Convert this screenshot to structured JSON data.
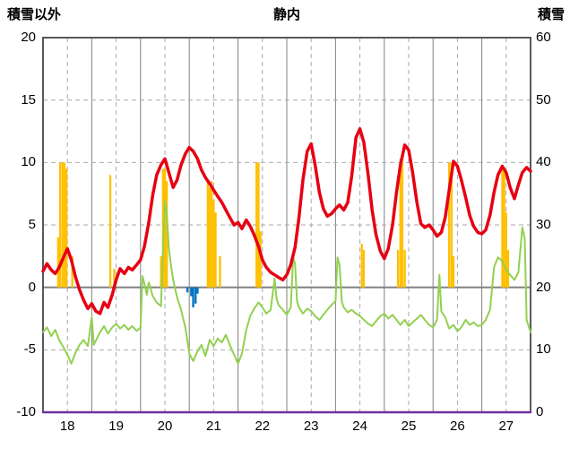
{
  "title": "静内",
  "left_axis": {
    "label": "積雪以外",
    "ticks": [
      20,
      15,
      10,
      5,
      0,
      -5,
      -10
    ]
  },
  "right_axis": {
    "label": "積雪",
    "ticks": [
      60,
      50,
      40,
      30,
      20,
      10,
      0
    ]
  },
  "x_axis": {
    "labels": [
      "18",
      "19",
      "20",
      "21",
      "22",
      "23",
      "24",
      "25",
      "26",
      "27"
    ]
  },
  "colors": {
    "red": "#e60012",
    "green": "#92d050",
    "orange": "#ffc000",
    "blue": "#0070c0",
    "purple": "#7030a0",
    "grid_solid": "#808080",
    "grid_dashed": "#a9a9a9",
    "zero_line": "#808080",
    "border": "#595959",
    "text": "#000000",
    "background": "#ffffff"
  },
  "chart_data": {
    "type": "line",
    "title": "静内",
    "xlabel": "",
    "ylabel_left": "積雪以外",
    "ylabel_right": "積雪",
    "xlim": [
      18,
      28
    ],
    "ylim_left": [
      -10,
      20
    ],
    "ylim_right": [
      0,
      60
    ],
    "grid": "on",
    "legend": "none",
    "x_tick_labels": [
      "18",
      "19",
      "20",
      "21",
      "22",
      "23",
      "24",
      "25",
      "26",
      "27"
    ],
    "series": [
      {
        "id": "orange-bars",
        "name": "orange-bars",
        "type": "bar",
        "axis": "left",
        "color_key": "orange",
        "bar_width_days": 0.042,
        "points": [
          [
            18.31,
            4
          ],
          [
            18.35,
            10
          ],
          [
            18.4,
            10
          ],
          [
            18.44,
            10
          ],
          [
            18.48,
            9.5
          ],
          [
            18.6,
            2.5
          ],
          [
            19.38,
            9
          ],
          [
            19.46,
            1.5
          ],
          [
            20.42,
            2.5
          ],
          [
            20.46,
            9.5
          ],
          [
            20.5,
            9.5
          ],
          [
            20.54,
            8.5
          ],
          [
            21.38,
            8.5
          ],
          [
            21.42,
            8
          ],
          [
            21.46,
            8.5
          ],
          [
            21.5,
            7
          ],
          [
            21.54,
            6
          ],
          [
            21.63,
            2.5
          ],
          [
            22.38,
            10
          ],
          [
            22.42,
            10
          ],
          [
            22.46,
            4.5
          ],
          [
            24.54,
            3.5
          ],
          [
            24.58,
            3
          ],
          [
            25.28,
            3
          ],
          [
            25.33,
            10.3
          ],
          [
            25.37,
            10
          ],
          [
            25.42,
            3
          ],
          [
            26.33,
            10
          ],
          [
            26.38,
            10
          ],
          [
            26.42,
            2.5
          ],
          [
            27.42,
            9.5
          ],
          [
            27.46,
            9.5
          ],
          [
            27.5,
            6
          ],
          [
            27.54,
            3
          ]
        ]
      },
      {
        "id": "blue-bars",
        "name": "blue-bars",
        "type": "bar",
        "axis": "left",
        "color_key": "blue",
        "bar_width_days": 0.042,
        "points": [
          [
            20.96,
            -0.4
          ],
          [
            21.04,
            -0.7
          ],
          [
            21.08,
            -1.6
          ],
          [
            21.13,
            -1.3
          ],
          [
            21.17,
            -0.5
          ]
        ]
      },
      {
        "id": "green-line",
        "name": "green-line",
        "type": "line",
        "axis": "left",
        "color_key": "green",
        "stroke_width": 2,
        "points": [
          [
            18.0,
            -3.6
          ],
          [
            18.08,
            -3.2
          ],
          [
            18.17,
            -3.9
          ],
          [
            18.25,
            -3.4
          ],
          [
            18.33,
            -4.2
          ],
          [
            18.42,
            -4.8
          ],
          [
            18.5,
            -5.4
          ],
          [
            18.58,
            -6.1
          ],
          [
            18.67,
            -5.2
          ],
          [
            18.75,
            -4.6
          ],
          [
            18.83,
            -4.2
          ],
          [
            18.92,
            -4.7
          ],
          [
            19.0,
            -2.4
          ],
          [
            19.04,
            -4.6
          ],
          [
            19.17,
            -3.6
          ],
          [
            19.25,
            -3.1
          ],
          [
            19.33,
            -3.7
          ],
          [
            19.42,
            -3.2
          ],
          [
            19.5,
            -2.9
          ],
          [
            19.58,
            -3.3
          ],
          [
            19.67,
            -3.0
          ],
          [
            19.75,
            -3.4
          ],
          [
            19.83,
            -3.1
          ],
          [
            19.92,
            -3.5
          ],
          [
            20.0,
            -3.2
          ],
          [
            20.04,
            0.9
          ],
          [
            20.08,
            0.3
          ],
          [
            20.13,
            -0.6
          ],
          [
            20.17,
            0.4
          ],
          [
            20.25,
            -0.7
          ],
          [
            20.33,
            -1.2
          ],
          [
            20.42,
            -1.5
          ],
          [
            20.5,
            6.9
          ],
          [
            20.54,
            5.8
          ],
          [
            20.58,
            3.1
          ],
          [
            20.63,
            1.6
          ],
          [
            20.67,
            0.6
          ],
          [
            20.75,
            -0.8
          ],
          [
            20.83,
            -1.8
          ],
          [
            20.92,
            -3.2
          ],
          [
            21.0,
            -5.3
          ],
          [
            21.08,
            -5.9
          ],
          [
            21.17,
            -5.1
          ],
          [
            21.25,
            -4.6
          ],
          [
            21.33,
            -5.5
          ],
          [
            21.42,
            -4.2
          ],
          [
            21.5,
            -4.7
          ],
          [
            21.58,
            -4.1
          ],
          [
            21.67,
            -4.4
          ],
          [
            21.75,
            -3.8
          ],
          [
            21.83,
            -4.6
          ],
          [
            21.92,
            -5.4
          ],
          [
            22.0,
            -6.1
          ],
          [
            22.08,
            -5.3
          ],
          [
            22.17,
            -3.4
          ],
          [
            22.25,
            -2.3
          ],
          [
            22.33,
            -1.7
          ],
          [
            22.42,
            -1.2
          ],
          [
            22.5,
            -1.6
          ],
          [
            22.58,
            -2.1
          ],
          [
            22.67,
            -1.8
          ],
          [
            22.75,
            0.7
          ],
          [
            22.79,
            -0.9
          ],
          [
            22.83,
            -1.4
          ],
          [
            22.92,
            -1.8
          ],
          [
            23.0,
            -2.2
          ],
          [
            23.08,
            -1.6
          ],
          [
            23.13,
            2.4
          ],
          [
            23.17,
            1.9
          ],
          [
            23.21,
            -1.1
          ],
          [
            23.25,
            -1.6
          ],
          [
            23.33,
            -2.1
          ],
          [
            23.42,
            -1.7
          ],
          [
            23.5,
            -1.9
          ],
          [
            23.58,
            -2.3
          ],
          [
            23.67,
            -2.6
          ],
          [
            23.75,
            -2.2
          ],
          [
            23.83,
            -1.8
          ],
          [
            23.92,
            -1.4
          ],
          [
            24.0,
            -1.1
          ],
          [
            24.04,
            2.4
          ],
          [
            24.08,
            1.8
          ],
          [
            24.13,
            -1.2
          ],
          [
            24.17,
            -1.6
          ],
          [
            24.25,
            -2.0
          ],
          [
            24.33,
            -1.8
          ],
          [
            24.42,
            -2.1
          ],
          [
            24.5,
            -2.3
          ],
          [
            24.58,
            -2.6
          ],
          [
            24.67,
            -2.9
          ],
          [
            24.75,
            -3.1
          ],
          [
            24.83,
            -2.7
          ],
          [
            24.92,
            -2.3
          ],
          [
            25.0,
            -2.1
          ],
          [
            25.08,
            -2.5
          ],
          [
            25.17,
            -2.2
          ],
          [
            25.25,
            -2.6
          ],
          [
            25.33,
            -3.0
          ],
          [
            25.42,
            -2.6
          ],
          [
            25.5,
            -3.1
          ],
          [
            25.58,
            -2.8
          ],
          [
            25.67,
            -2.5
          ],
          [
            25.75,
            -2.2
          ],
          [
            25.83,
            -2.6
          ],
          [
            25.92,
            -3.0
          ],
          [
            26.0,
            -3.2
          ],
          [
            26.08,
            -2.6
          ],
          [
            26.13,
            1.0
          ],
          [
            26.17,
            -1.9
          ],
          [
            26.25,
            -2.4
          ],
          [
            26.33,
            -3.3
          ],
          [
            26.42,
            -3.0
          ],
          [
            26.5,
            -3.5
          ],
          [
            26.58,
            -3.2
          ],
          [
            26.67,
            -2.6
          ],
          [
            26.75,
            -3.0
          ],
          [
            26.83,
            -2.8
          ],
          [
            26.92,
            -3.1
          ],
          [
            27.0,
            -3.0
          ],
          [
            27.08,
            -2.6
          ],
          [
            27.17,
            -1.8
          ],
          [
            27.25,
            1.6
          ],
          [
            27.33,
            2.4
          ],
          [
            27.42,
            2.1
          ],
          [
            27.5,
            1.4
          ],
          [
            27.58,
            1.0
          ],
          [
            27.67,
            0.6
          ],
          [
            27.75,
            1.2
          ],
          [
            27.83,
            4.8
          ],
          [
            27.88,
            3.9
          ],
          [
            27.92,
            -2.6
          ],
          [
            28.0,
            -3.6
          ]
        ]
      },
      {
        "id": "red-line",
        "name": "red-line",
        "type": "line",
        "axis": "left",
        "color_key": "red",
        "stroke_width": 3.5,
        "points": [
          [
            18.0,
            1.3
          ],
          [
            18.08,
            1.9
          ],
          [
            18.17,
            1.4
          ],
          [
            18.25,
            1.1
          ],
          [
            18.33,
            1.6
          ],
          [
            18.42,
            2.4
          ],
          [
            18.5,
            3.1
          ],
          [
            18.58,
            2.2
          ],
          [
            18.67,
            0.8
          ],
          [
            18.75,
            -0.2
          ],
          [
            18.83,
            -1.0
          ],
          [
            18.92,
            -1.7
          ],
          [
            19.0,
            -1.3
          ],
          [
            19.08,
            -1.9
          ],
          [
            19.17,
            -2.1
          ],
          [
            19.25,
            -1.2
          ],
          [
            19.33,
            -1.6
          ],
          [
            19.42,
            -0.6
          ],
          [
            19.5,
            0.6
          ],
          [
            19.58,
            1.5
          ],
          [
            19.67,
            1.1
          ],
          [
            19.75,
            1.6
          ],
          [
            19.83,
            1.4
          ],
          [
            19.92,
            1.8
          ],
          [
            20.0,
            2.2
          ],
          [
            20.08,
            3.3
          ],
          [
            20.17,
            5.2
          ],
          [
            20.25,
            7.4
          ],
          [
            20.33,
            9.0
          ],
          [
            20.42,
            9.8
          ],
          [
            20.5,
            10.3
          ],
          [
            20.58,
            9.2
          ],
          [
            20.67,
            8.0
          ],
          [
            20.75,
            8.6
          ],
          [
            20.83,
            9.8
          ],
          [
            20.92,
            10.7
          ],
          [
            21.0,
            11.2
          ],
          [
            21.08,
            10.9
          ],
          [
            21.17,
            10.3
          ],
          [
            21.25,
            9.4
          ],
          [
            21.33,
            8.8
          ],
          [
            21.42,
            8.3
          ],
          [
            21.5,
            7.8
          ],
          [
            21.58,
            7.3
          ],
          [
            21.67,
            6.8
          ],
          [
            21.75,
            6.2
          ],
          [
            21.83,
            5.6
          ],
          [
            21.92,
            5.0
          ],
          [
            22.0,
            5.2
          ],
          [
            22.08,
            4.7
          ],
          [
            22.17,
            5.4
          ],
          [
            22.25,
            4.9
          ],
          [
            22.33,
            4.2
          ],
          [
            22.42,
            3.3
          ],
          [
            22.5,
            2.2
          ],
          [
            22.58,
            1.6
          ],
          [
            22.67,
            1.2
          ],
          [
            22.75,
            1.0
          ],
          [
            22.83,
            0.8
          ],
          [
            22.92,
            0.6
          ],
          [
            23.0,
            1.0
          ],
          [
            23.08,
            1.8
          ],
          [
            23.17,
            3.2
          ],
          [
            23.25,
            5.6
          ],
          [
            23.33,
            8.6
          ],
          [
            23.42,
            10.9
          ],
          [
            23.5,
            11.5
          ],
          [
            23.58,
            9.8
          ],
          [
            23.67,
            7.6
          ],
          [
            23.75,
            6.3
          ],
          [
            23.83,
            5.7
          ],
          [
            23.92,
            5.9
          ],
          [
            24.0,
            6.3
          ],
          [
            24.08,
            6.6
          ],
          [
            24.17,
            6.2
          ],
          [
            24.25,
            6.8
          ],
          [
            24.33,
            8.9
          ],
          [
            24.42,
            12.0
          ],
          [
            24.5,
            12.7
          ],
          [
            24.58,
            11.6
          ],
          [
            24.67,
            9.0
          ],
          [
            24.75,
            6.2
          ],
          [
            24.83,
            4.2
          ],
          [
            24.92,
            2.9
          ],
          [
            25.0,
            2.3
          ],
          [
            25.08,
            3.1
          ],
          [
            25.17,
            5.0
          ],
          [
            25.25,
            7.6
          ],
          [
            25.33,
            9.8
          ],
          [
            25.42,
            11.4
          ],
          [
            25.5,
            11.0
          ],
          [
            25.58,
            9.2
          ],
          [
            25.67,
            6.8
          ],
          [
            25.75,
            5.1
          ],
          [
            25.83,
            4.8
          ],
          [
            25.92,
            5.0
          ],
          [
            26.0,
            4.6
          ],
          [
            26.08,
            4.1
          ],
          [
            26.17,
            4.4
          ],
          [
            26.25,
            5.6
          ],
          [
            26.33,
            7.8
          ],
          [
            26.42,
            10.1
          ],
          [
            26.5,
            9.7
          ],
          [
            26.58,
            8.6
          ],
          [
            26.67,
            7.2
          ],
          [
            26.75,
            5.8
          ],
          [
            26.83,
            4.9
          ],
          [
            26.92,
            4.4
          ],
          [
            27.0,
            4.3
          ],
          [
            27.08,
            4.6
          ],
          [
            27.17,
            5.8
          ],
          [
            27.25,
            7.6
          ],
          [
            27.33,
            9.0
          ],
          [
            27.42,
            9.7
          ],
          [
            27.5,
            9.2
          ],
          [
            27.58,
            8.0
          ],
          [
            27.67,
            7.1
          ],
          [
            27.75,
            8.2
          ],
          [
            27.83,
            9.2
          ],
          [
            27.92,
            9.6
          ],
          [
            28.0,
            9.3
          ]
        ]
      },
      {
        "id": "purple-line",
        "name": "purple-line",
        "type": "line",
        "axis": "right",
        "color_key": "purple",
        "stroke_width": 2.5,
        "points": [
          [
            18,
            0
          ],
          [
            28,
            0
          ]
        ]
      }
    ]
  }
}
